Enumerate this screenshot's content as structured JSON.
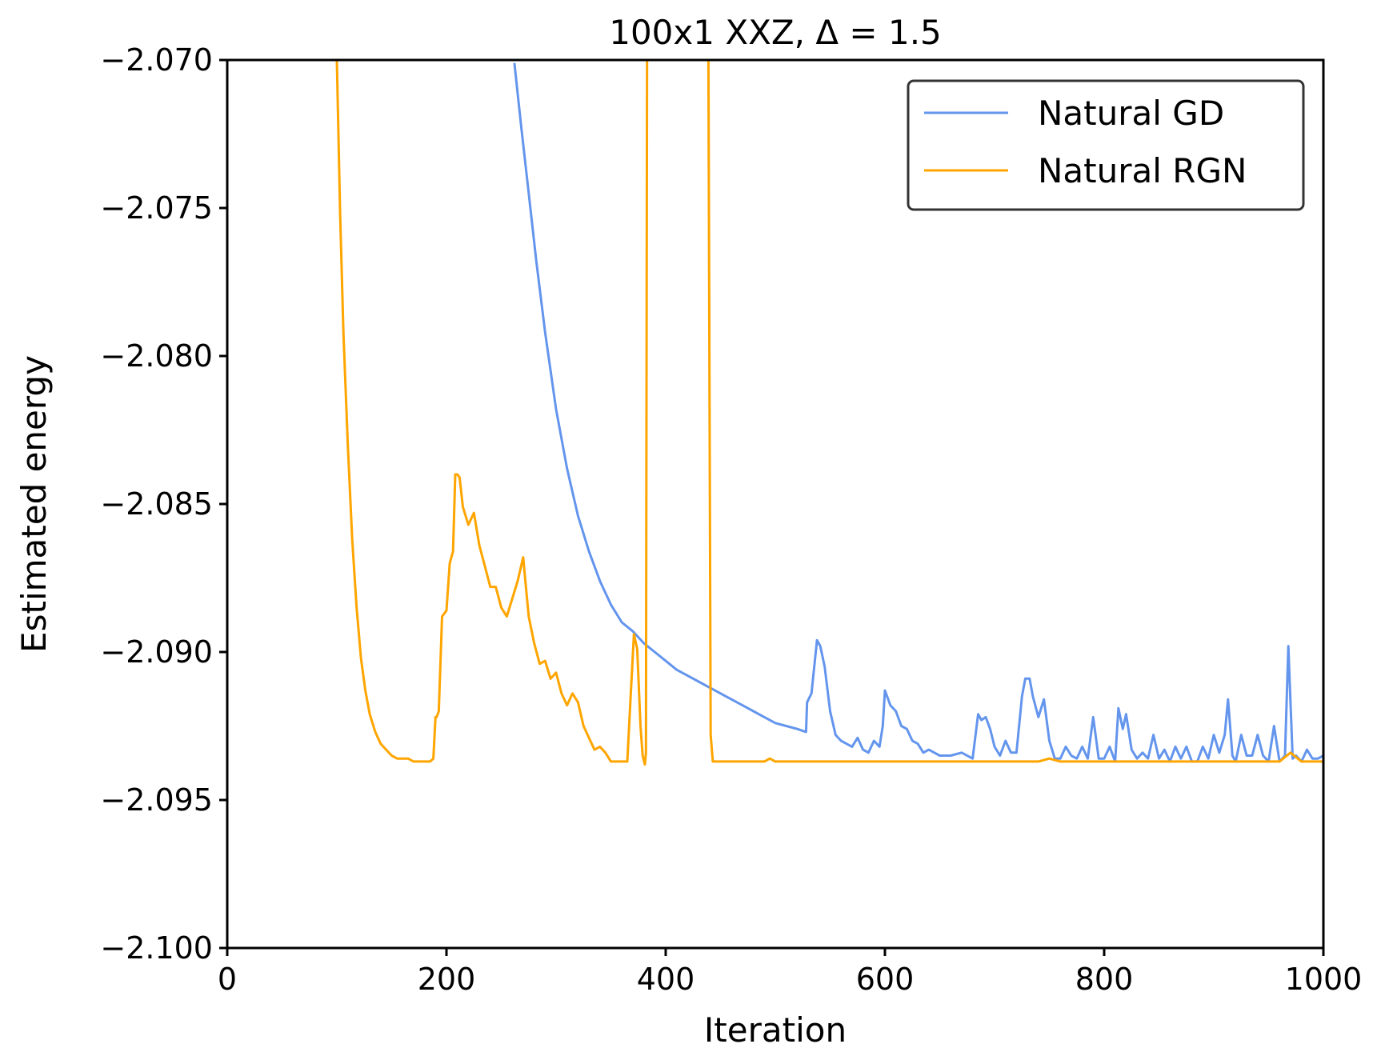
{
  "chart_data": {
    "type": "line",
    "title": "100x1 XXZ, Δ = 1.5",
    "xlabel": "Iteration",
    "ylabel": "Estimated energy",
    "xlim": [
      0,
      1000
    ],
    "ylim": [
      -2.1,
      -2.07
    ],
    "xticks": [
      0,
      200,
      400,
      600,
      800,
      1000
    ],
    "xtick_labels": [
      "0",
      "200",
      "400",
      "600",
      "800",
      "1000"
    ],
    "yticks": [
      -2.1,
      -2.095,
      -2.09,
      -2.085,
      -2.08,
      -2.075,
      -2.07
    ],
    "ytick_labels": [
      "−2.100",
      "−2.095",
      "−2.090",
      "−2.085",
      "−2.080",
      "−2.075",
      "−2.070"
    ],
    "grid": false,
    "legend_position": "top-right",
    "series": [
      {
        "name": "Natural GD",
        "color": "#6495ED",
        "x": [
          262,
          268,
          275,
          282,
          290,
          300,
          310,
          320,
          330,
          340,
          350,
          360,
          370,
          380,
          390,
          400,
          410,
          420,
          430,
          440,
          450,
          460,
          470,
          480,
          490,
          500,
          510,
          520,
          528,
          529,
          533,
          538,
          541,
          545,
          550,
          555,
          560,
          565,
          570,
          575,
          580,
          585,
          590,
          595,
          598,
          600,
          605,
          610,
          615,
          620,
          625,
          630,
          635,
          640,
          645,
          650,
          660,
          670,
          680,
          685,
          688,
          692,
          696,
          700,
          705,
          710,
          715,
          720,
          725,
          728,
          732,
          735,
          740,
          745,
          750,
          755,
          760,
          765,
          770,
          775,
          780,
          785,
          790,
          795,
          800,
          805,
          810,
          813,
          817,
          820,
          825,
          830,
          835,
          840,
          845,
          850,
          855,
          860,
          865,
          870,
          875,
          880,
          885,
          890,
          895,
          900,
          905,
          910,
          913,
          917,
          920,
          925,
          930,
          935,
          940,
          945,
          950,
          955,
          960,
          965,
          968,
          972,
          975,
          980,
          985,
          990,
          995,
          1000
        ],
        "y": [
          -2.0701,
          -2.0722,
          -2.0745,
          -2.0768,
          -2.0792,
          -2.0818,
          -2.0838,
          -2.0854,
          -2.0866,
          -2.0876,
          -2.0884,
          -2.089,
          -2.0893,
          -2.0897,
          -2.09,
          -2.0903,
          -2.0906,
          -2.0908,
          -2.091,
          -2.0912,
          -2.0914,
          -2.0916,
          -2.0918,
          -2.092,
          -2.0922,
          -2.0924,
          -2.0925,
          -2.0926,
          -2.0927,
          -2.0917,
          -2.0914,
          -2.0896,
          -2.0898,
          -2.0905,
          -2.092,
          -2.0928,
          -2.093,
          -2.0931,
          -2.0932,
          -2.0929,
          -2.0933,
          -2.0934,
          -2.093,
          -2.0932,
          -2.0925,
          -2.0913,
          -2.0918,
          -2.092,
          -2.0925,
          -2.0926,
          -2.093,
          -2.0931,
          -2.0934,
          -2.0933,
          -2.0934,
          -2.0935,
          -2.0935,
          -2.0934,
          -2.0936,
          -2.0921,
          -2.0923,
          -2.0922,
          -2.0926,
          -2.0932,
          -2.0935,
          -2.093,
          -2.0934,
          -2.0934,
          -2.0915,
          -2.0909,
          -2.0909,
          -2.0915,
          -2.0922,
          -2.0916,
          -2.093,
          -2.0936,
          -2.0936,
          -2.0932,
          -2.0935,
          -2.0936,
          -2.0932,
          -2.0936,
          -2.0922,
          -2.0936,
          -2.0936,
          -2.0932,
          -2.0937,
          -2.0919,
          -2.0926,
          -2.0921,
          -2.0933,
          -2.0936,
          -2.0934,
          -2.0936,
          -2.0928,
          -2.0936,
          -2.0933,
          -2.0937,
          -2.0932,
          -2.0936,
          -2.0932,
          -2.0937,
          -2.0937,
          -2.0932,
          -2.0936,
          -2.0928,
          -2.0934,
          -2.0928,
          -2.0916,
          -2.0935,
          -2.0937,
          -2.0928,
          -2.0935,
          -2.0935,
          -2.0928,
          -2.0935,
          -2.0937,
          -2.0925,
          -2.0937,
          -2.0935,
          -2.0898,
          -2.0936,
          -2.0935,
          -2.0937,
          -2.0933,
          -2.0936,
          -2.0936,
          -2.0935
        ]
      },
      {
        "name": "Natural RGN",
        "color": "#FFA500",
        "x": [
          100,
          103,
          106,
          110,
          114,
          118,
          122,
          126,
          130,
          135,
          140,
          145,
          150,
          155,
          160,
          165,
          170,
          175,
          180,
          185,
          188,
          190,
          191,
          193,
          196,
          200,
          203,
          206,
          208,
          210,
          212,
          215,
          220,
          225,
          230,
          235,
          240,
          245,
          250,
          255,
          260,
          265,
          270,
          272,
          275,
          280,
          285,
          290,
          295,
          300,
          305,
          310,
          315,
          320,
          325,
          330,
          335,
          340,
          345,
          350,
          355,
          360,
          365,
          368,
          371,
          374,
          377,
          379,
          381,
          382,
          383,
          384,
          386,
          390,
          395,
          400,
          405,
          410,
          415,
          420,
          425,
          430,
          435,
          437,
          439,
          441,
          443,
          446,
          450,
          460,
          470,
          480,
          490,
          495,
          500,
          520,
          540,
          560,
          580,
          600,
          620,
          640,
          660,
          680,
          700,
          720,
          740,
          750,
          760,
          780,
          800,
          820,
          840,
          860,
          880,
          900,
          920,
          940,
          960,
          970,
          980,
          1000
        ],
        "y": [
          -2.07,
          -2.0752,
          -2.0792,
          -2.083,
          -2.0862,
          -2.0885,
          -2.0902,
          -2.0913,
          -2.0921,
          -2.0927,
          -2.0931,
          -2.0933,
          -2.0935,
          -2.0936,
          -2.0936,
          -2.0936,
          -2.0937,
          -2.0937,
          -2.0937,
          -2.0937,
          -2.0936,
          -2.0922,
          -2.0922,
          -2.092,
          -2.0888,
          -2.0886,
          -2.087,
          -2.0866,
          -2.084,
          -2.084,
          -2.0841,
          -2.0851,
          -2.0857,
          -2.0853,
          -2.0864,
          -2.0871,
          -2.0878,
          -2.0878,
          -2.0885,
          -2.0888,
          -2.0882,
          -2.0876,
          -2.0868,
          -2.0876,
          -2.0888,
          -2.0897,
          -2.0904,
          -2.0903,
          -2.0909,
          -2.0907,
          -2.0914,
          -2.0918,
          -2.0914,
          -2.0917,
          -2.0925,
          -2.0929,
          -2.0933,
          -2.0932,
          -2.0934,
          -2.0937,
          -2.0937,
          -2.0937,
          -2.0937,
          -2.0915,
          -2.0894,
          -2.0899,
          -2.0925,
          -2.0935,
          -2.0938,
          -2.0934,
          -2.07,
          -2.07,
          -2.07,
          -2.07,
          -2.07,
          -2.07,
          -2.07,
          -2.07,
          -2.07,
          -2.07,
          -2.07,
          -2.07,
          -2.07,
          -2.07,
          -2.07,
          -2.0928,
          -2.0937,
          -2.0937,
          -2.0937,
          -2.0937,
          -2.0937,
          -2.0937,
          -2.0937,
          -2.0936,
          -2.0937,
          -2.0937,
          -2.0937,
          -2.0937,
          -2.0937,
          -2.0937,
          -2.0937,
          -2.0937,
          -2.0937,
          -2.0937,
          -2.0937,
          -2.0937,
          -2.0937,
          -2.0936,
          -2.0937,
          -2.0937,
          -2.0937,
          -2.0937,
          -2.0937,
          -2.0937,
          -2.0937,
          -2.0937,
          -2.0937,
          -2.0937,
          -2.0937,
          -2.0934,
          -2.0937,
          -2.0937
        ]
      }
    ]
  }
}
